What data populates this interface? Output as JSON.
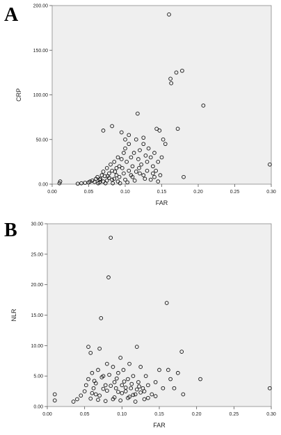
{
  "chart_data": [
    {
      "type": "scatter",
      "panel_label": "A",
      "xlabel": "FAR",
      "ylabel": "CRP",
      "xlim": [
        0,
        0.3
      ],
      "ylim": [
        0,
        200
      ],
      "x_ticks": [
        0,
        0.05,
        0.1,
        0.15,
        0.2,
        0.25,
        0.3
      ],
      "x_tick_labels": [
        "0.00",
        "0.05",
        "0.10",
        "0.15",
        "0.20",
        "0.25",
        "0.30"
      ],
      "y_ticks": [
        0,
        50,
        100,
        150,
        200
      ],
      "y_tick_labels": [
        "0.00",
        "50.00",
        "100.00",
        "150.00",
        "200.00"
      ],
      "grid": false,
      "points": [
        [
          0.01,
          1
        ],
        [
          0.011,
          3
        ],
        [
          0.035,
          0.5
        ],
        [
          0.04,
          1
        ],
        [
          0.045,
          1.5
        ],
        [
          0.05,
          2
        ],
        [
          0.052,
          3
        ],
        [
          0.055,
          4
        ],
        [
          0.058,
          2.5
        ],
        [
          0.06,
          6
        ],
        [
          0.062,
          8
        ],
        [
          0.065,
          5
        ],
        [
          0.068,
          10
        ],
        [
          0.07,
          14
        ],
        [
          0.072,
          9
        ],
        [
          0.075,
          18
        ],
        [
          0.078,
          12
        ],
        [
          0.08,
          22
        ],
        [
          0.082,
          15
        ],
        [
          0.085,
          25
        ],
        [
          0.088,
          18
        ],
        [
          0.09,
          30
        ],
        [
          0.092,
          20
        ],
        [
          0.095,
          28
        ],
        [
          0.098,
          35
        ],
        [
          0.1,
          40
        ],
        [
          0.102,
          25
        ],
        [
          0.105,
          45
        ],
        [
          0.108,
          30
        ],
        [
          0.11,
          20
        ],
        [
          0.112,
          35
        ],
        [
          0.115,
          50
        ],
        [
          0.118,
          28
        ],
        [
          0.12,
          38
        ],
        [
          0.122,
          22
        ],
        [
          0.125,
          45
        ],
        [
          0.128,
          32
        ],
        [
          0.13,
          25
        ],
        [
          0.132,
          40
        ],
        [
          0.135,
          30
        ],
        [
          0.138,
          20
        ],
        [
          0.14,
          35
        ],
        [
          0.142,
          15
        ],
        [
          0.145,
          25
        ],
        [
          0.148,
          10
        ],
        [
          0.15,
          30
        ],
        [
          0.07,
          60
        ],
        [
          0.082,
          65
        ],
        [
          0.095,
          58
        ],
        [
          0.1,
          50
        ],
        [
          0.105,
          55
        ],
        [
          0.117,
          79
        ],
        [
          0.125,
          52
        ],
        [
          0.143,
          62
        ],
        [
          0.147,
          60
        ],
        [
          0.152,
          50
        ],
        [
          0.155,
          45
        ],
        [
          0.16,
          190
        ],
        [
          0.162,
          118
        ],
        [
          0.163,
          113
        ],
        [
          0.17,
          125
        ],
        [
          0.178,
          127
        ],
        [
          0.172,
          62
        ],
        [
          0.18,
          8
        ],
        [
          0.207,
          88
        ],
        [
          0.298,
          22
        ],
        [
          0.135,
          5
        ],
        [
          0.14,
          8
        ],
        [
          0.12,
          12
        ],
        [
          0.11,
          8
        ],
        [
          0.1,
          5
        ],
        [
          0.09,
          3
        ],
        [
          0.085,
          6
        ],
        [
          0.075,
          4
        ],
        [
          0.065,
          2
        ],
        [
          0.115,
          14
        ],
        [
          0.108,
          10
        ],
        [
          0.098,
          12
        ],
        [
          0.092,
          8
        ],
        [
          0.088,
          10
        ],
        [
          0.082,
          5
        ],
        [
          0.078,
          7
        ],
        [
          0.07,
          3
        ],
        [
          0.13,
          15
        ],
        [
          0.125,
          10
        ],
        [
          0.119,
          18
        ],
        [
          0.105,
          15
        ],
        [
          0.096,
          18
        ],
        [
          0.086,
          14
        ],
        [
          0.076,
          9
        ],
        [
          0.066,
          6
        ],
        [
          0.145,
          3
        ],
        [
          0.138,
          12
        ],
        [
          0.127,
          6
        ],
        [
          0.113,
          4
        ],
        [
          0.103,
          2
        ],
        [
          0.093,
          1
        ],
        [
          0.083,
          1
        ],
        [
          0.073,
          1
        ],
        [
          0.063,
          1
        ]
      ]
    },
    {
      "type": "scatter",
      "panel_label": "B",
      "xlabel": "FAR",
      "ylabel": "NLR",
      "xlim": [
        0,
        0.3
      ],
      "ylim": [
        0,
        30
      ],
      "x_ticks": [
        0,
        0.05,
        0.1,
        0.15,
        0.2,
        0.25,
        0.3
      ],
      "x_tick_labels": [
        "0.00",
        "0.05",
        "0.10",
        "0.15",
        "0.20",
        "0.25",
        "0.30"
      ],
      "y_ticks": [
        0,
        5,
        10,
        15,
        20,
        25,
        30
      ],
      "y_tick_labels": [
        "0.00",
        "5.00",
        "10.00",
        "15.00",
        "20.00",
        "25.00",
        "30.00"
      ],
      "grid": false,
      "points": [
        [
          0.01,
          1
        ],
        [
          0.01,
          2
        ],
        [
          0.035,
          0.8
        ],
        [
          0.04,
          1.2
        ],
        [
          0.045,
          1.8
        ],
        [
          0.05,
          2.5
        ],
        [
          0.052,
          3.5
        ],
        [
          0.055,
          4.5
        ],
        [
          0.055,
          9.8
        ],
        [
          0.058,
          8.8
        ],
        [
          0.06,
          5.5
        ],
        [
          0.062,
          3
        ],
        [
          0.065,
          2
        ],
        [
          0.068,
          6
        ],
        [
          0.07,
          9.5
        ],
        [
          0.072,
          14.5
        ],
        [
          0.075,
          5
        ],
        [
          0.078,
          3.5
        ],
        [
          0.08,
          7
        ],
        [
          0.082,
          21.2
        ],
        [
          0.085,
          27.7
        ],
        [
          0.088,
          6.5
        ],
        [
          0.09,
          4
        ],
        [
          0.092,
          3
        ],
        [
          0.095,
          5.5
        ],
        [
          0.098,
          8
        ],
        [
          0.1,
          3.5
        ],
        [
          0.102,
          6
        ],
        [
          0.105,
          2.5
        ],
        [
          0.108,
          4.5
        ],
        [
          0.11,
          7
        ],
        [
          0.112,
          3
        ],
        [
          0.115,
          5
        ],
        [
          0.118,
          2
        ],
        [
          0.12,
          9.8
        ],
        [
          0.122,
          4
        ],
        [
          0.125,
          6.5
        ],
        [
          0.128,
          3
        ],
        [
          0.13,
          2.5
        ],
        [
          0.132,
          5
        ],
        [
          0.135,
          3.5
        ],
        [
          0.14,
          2
        ],
        [
          0.145,
          4
        ],
        [
          0.15,
          6
        ],
        [
          0.155,
          3
        ],
        [
          0.16,
          17
        ],
        [
          0.162,
          6
        ],
        [
          0.165,
          4.5
        ],
        [
          0.17,
          3
        ],
        [
          0.175,
          5.5
        ],
        [
          0.18,
          9
        ],
        [
          0.182,
          2
        ],
        [
          0.205,
          4.5
        ],
        [
          0.298,
          3
        ],
        [
          0.06,
          2.2
        ],
        [
          0.07,
          1.8
        ],
        [
          0.08,
          2.6
        ],
        [
          0.09,
          1.5
        ],
        [
          0.1,
          2.2
        ],
        [
          0.11,
          1.6
        ],
        [
          0.12,
          2.8
        ],
        [
          0.13,
          1.2
        ],
        [
          0.065,
          3.8
        ],
        [
          0.075,
          2.9
        ],
        [
          0.085,
          3.4
        ],
        [
          0.095,
          2.4
        ],
        [
          0.105,
          3.1
        ],
        [
          0.115,
          1.9
        ],
        [
          0.125,
          2.3
        ],
        [
          0.135,
          1.4
        ],
        [
          0.145,
          1.7
        ],
        [
          0.058,
          1.3
        ],
        [
          0.068,
          1.1
        ],
        [
          0.078,
          0.9
        ],
        [
          0.088,
          1.2
        ],
        [
          0.098,
          1
        ],
        [
          0.108,
          1.4
        ],
        [
          0.118,
          0.8
        ],
        [
          0.063,
          4.2
        ],
        [
          0.073,
          4.8
        ],
        [
          0.083,
          5.2
        ],
        [
          0.093,
          4.6
        ],
        [
          0.103,
          4.1
        ],
        [
          0.113,
          3.7
        ],
        [
          0.123,
          3.3
        ]
      ]
    }
  ]
}
